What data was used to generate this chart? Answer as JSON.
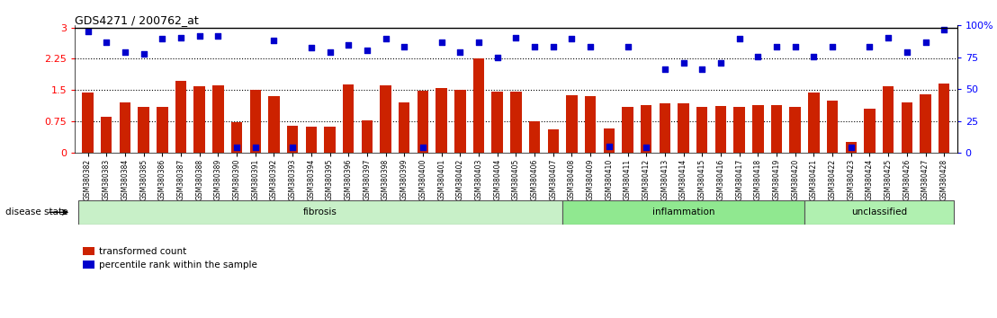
{
  "title": "GDS4271 / 200762_at",
  "samples": [
    "GSM380382",
    "GSM380383",
    "GSM380384",
    "GSM380385",
    "GSM380386",
    "GSM380387",
    "GSM380388",
    "GSM380389",
    "GSM380390",
    "GSM380391",
    "GSM380392",
    "GSM380393",
    "GSM380394",
    "GSM380395",
    "GSM380396",
    "GSM380397",
    "GSM380398",
    "GSM380399",
    "GSM380400",
    "GSM380401",
    "GSM380402",
    "GSM380403",
    "GSM380404",
    "GSM380405",
    "GSM380406",
    "GSM380407",
    "GSM380408",
    "GSM380409",
    "GSM380410",
    "GSM380411",
    "GSM380412",
    "GSM380413",
    "GSM380414",
    "GSM380415",
    "GSM380416",
    "GSM380417",
    "GSM380418",
    "GSM380419",
    "GSM380420",
    "GSM380421",
    "GSM380422",
    "GSM380423",
    "GSM380424",
    "GSM380425",
    "GSM380426",
    "GSM380427",
    "GSM380428"
  ],
  "bar_values": [
    1.45,
    0.85,
    1.2,
    1.1,
    1.1,
    1.73,
    1.6,
    1.62,
    0.72,
    1.5,
    1.35,
    0.65,
    0.62,
    0.62,
    1.63,
    0.78,
    1.62,
    1.2,
    1.48,
    1.55,
    1.5,
    2.25,
    1.47,
    1.47,
    0.75,
    0.55,
    1.38,
    1.35,
    0.58,
    1.1,
    1.15,
    1.18,
    1.18,
    1.1,
    1.12,
    1.1,
    1.15,
    1.15,
    1.1,
    1.45,
    1.25,
    0.25,
    1.05,
    1.6,
    1.2,
    1.4,
    1.65
  ],
  "percentile_values": [
    97,
    88,
    80,
    79,
    91,
    92,
    93,
    93,
    4,
    4,
    90,
    4,
    84,
    80,
    86,
    82,
    91,
    85,
    4,
    88,
    80,
    88,
    76,
    92,
    85,
    85,
    91,
    85,
    5,
    85,
    4,
    67,
    72,
    67,
    72,
    91,
    77,
    85,
    85,
    77,
    85,
    4,
    85,
    92,
    80,
    88,
    98
  ],
  "groups": [
    {
      "label": "fibrosis",
      "start": 0,
      "end": 26,
      "color": "#c8f0c8"
    },
    {
      "label": "inflammation",
      "start": 26,
      "end": 39,
      "color": "#90e890"
    },
    {
      "label": "unclassified",
      "start": 39,
      "end": 47,
      "color": "#b0f0b0"
    }
  ],
  "bar_color": "#cc2200",
  "dot_color": "#0000cc",
  "ylim_left": [
    0,
    3.05
  ],
  "ylim_right": [
    0,
    100
  ],
  "yticks_left": [
    0,
    0.75,
    1.5,
    2.25,
    3.0
  ],
  "ytick_labels_left": [
    "0",
    "0.75",
    "1.5",
    "2.25",
    "3"
  ],
  "yticks_right": [
    0,
    25,
    50,
    75,
    100
  ],
  "ytick_labels_right": [
    "0",
    "25",
    "50",
    "75",
    "100%"
  ],
  "hlines": [
    0.75,
    1.5,
    2.25
  ],
  "bar_width": 0.6,
  "legend_labels": [
    "transformed count",
    "percentile rank within the sample"
  ],
  "disease_state_label": "disease state"
}
